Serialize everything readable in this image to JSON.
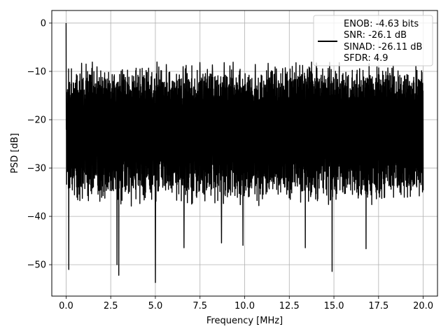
{
  "chart_data": {
    "type": "line",
    "title": "",
    "xlabel": "Frequency [MHz]",
    "ylabel": "PSD [dB]",
    "xlim": [
      -0.8,
      20.8
    ],
    "ylim": [
      -56.5,
      2.6
    ],
    "xticks": [
      0.0,
      2.5,
      5.0,
      7.5,
      10.0,
      12.5,
      15.0,
      17.5,
      20.0
    ],
    "xtick_labels": [
      "0.0",
      "2.5",
      "5.0",
      "7.5",
      "10.0",
      "12.5",
      "15.0",
      "17.5",
      "20.0"
    ],
    "yticks": [
      0,
      -10,
      -20,
      -30,
      -40,
      -50
    ],
    "ytick_labels": [
      "0",
      "−10",
      "−20",
      "−30",
      "−40",
      "−50"
    ],
    "grid": true,
    "legend_position": "top-right",
    "series": [
      {
        "name": "",
        "color": "#000000",
        "x_range": [
          0.0,
          20.0
        ],
        "points": 2000,
        "envelope_upper_typical": -10,
        "envelope_lower_typical": -38,
        "peak": {
          "x": 0.0,
          "y": 0.0
        },
        "notable_dips": [
          {
            "x": 0.15,
            "y": -51.0
          },
          {
            "x": 2.95,
            "y": -52.2
          },
          {
            "x": 2.85,
            "y": -50.0
          },
          {
            "x": 5.0,
            "y": -53.7
          },
          {
            "x": 6.6,
            "y": -46.5
          },
          {
            "x": 8.7,
            "y": -45.5
          },
          {
            "x": 9.9,
            "y": -46.0
          },
          {
            "x": 13.4,
            "y": -46.5
          },
          {
            "x": 14.9,
            "y": -51.4
          },
          {
            "x": 16.8,
            "y": -46.7
          }
        ]
      }
    ],
    "legend_lines": [
      "ENOB: -4.63 bits",
      "SNR: -26.1 dB",
      "SINAD: -26.11 dB",
      "SFDR: 4.9"
    ]
  }
}
